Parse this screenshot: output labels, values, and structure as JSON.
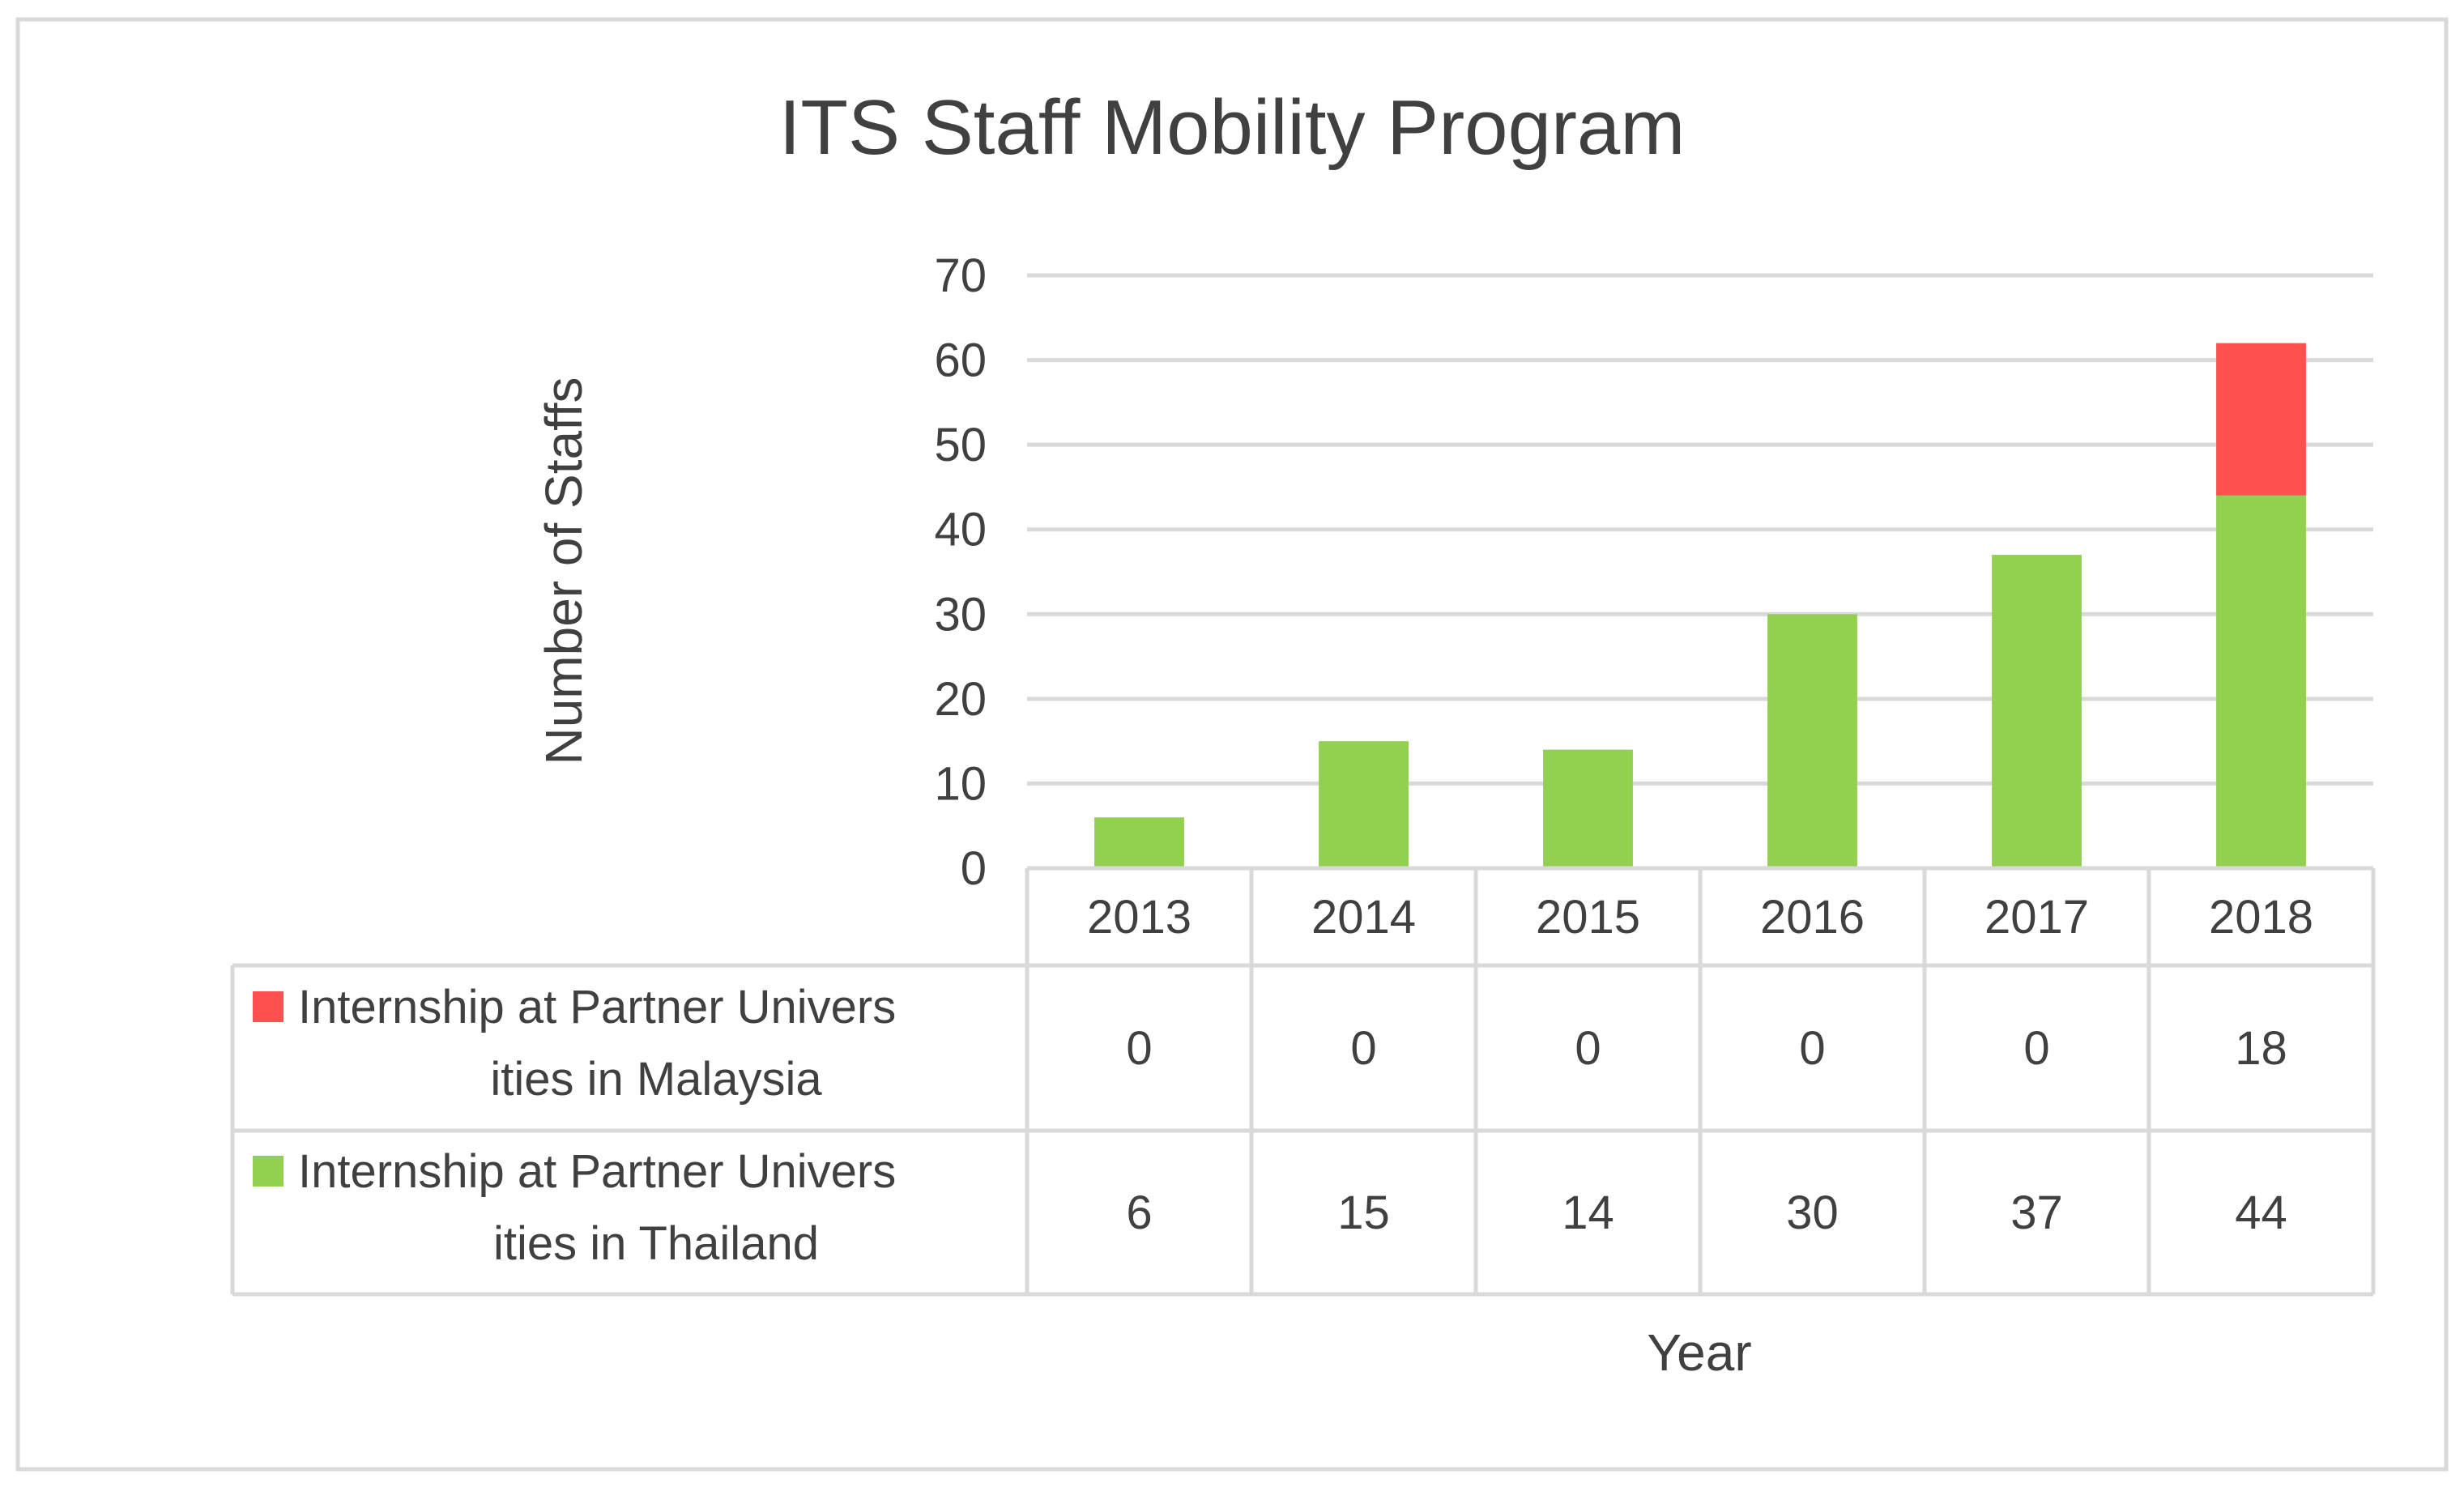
{
  "chart_data": {
    "type": "bar",
    "stacked": true,
    "title": "ITS Staff Mobility Program",
    "xlabel": "Year",
    "ylabel": "Number of Staffs",
    "ylim": [
      0,
      70
    ],
    "yticks": [
      0,
      10,
      20,
      30,
      40,
      50,
      60,
      70
    ],
    "grid": true,
    "data_table": true,
    "categories": [
      "2013",
      "2014",
      "2015",
      "2016",
      "2017",
      "2018"
    ],
    "series": [
      {
        "name": "Internship at Partner Universities in Malaysia",
        "label_lines": [
          "Internship at Partner Univers",
          "ities in Malaysia"
        ],
        "color": "#ff5050",
        "values": [
          0,
          0,
          0,
          0,
          0,
          18
        ]
      },
      {
        "name": "Internship at Partner Universities in Thailand",
        "label_lines": [
          "Internship at Partner Univers",
          "ities in Thailand"
        ],
        "color": "#92d050",
        "values": [
          6,
          15,
          14,
          30,
          37,
          44
        ]
      }
    ]
  },
  "colors": {
    "text": "#404040",
    "grid": "#d9d9d9",
    "border": "#d9d9d9"
  }
}
